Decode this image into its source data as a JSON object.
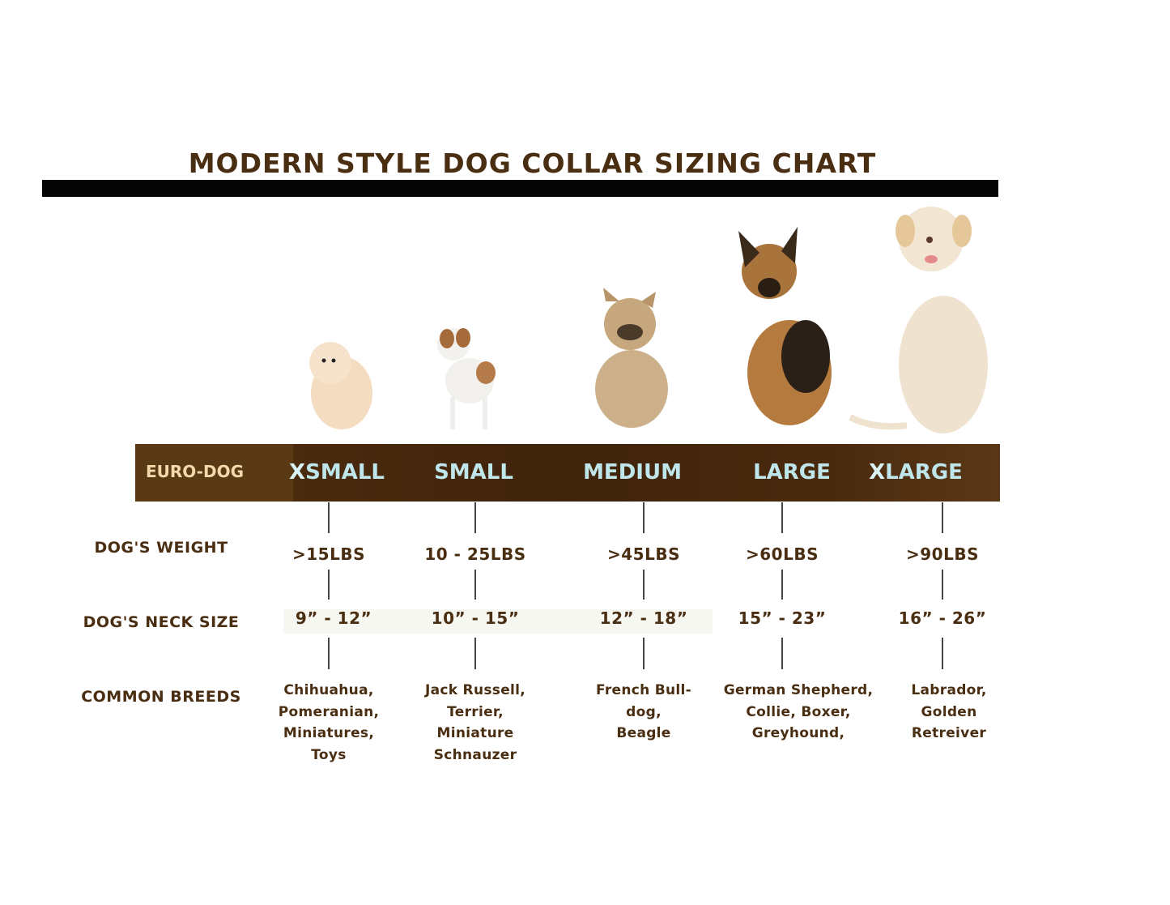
{
  "title": "MODERN STYLE DOG COLLAR SIZING CHART",
  "brand_label": "EURO-DOG",
  "row_labels": {
    "weight": "DOG'S WEIGHT",
    "neck": "DOG'S NECK SIZE",
    "breeds": "COMMON BREEDS"
  },
  "colors": {
    "text": "#4a2e12",
    "band": "#4a2a0e",
    "size_label": "#bfe6ea",
    "brand_label": "#f4d9aa"
  },
  "sizes": [
    {
      "x": "X",
      "label": "SMALL",
      "weight": ">15LBS",
      "neck": "9” - 12”",
      "breeds": [
        "Chihuahua,",
        "Pomeranian,",
        "Miniatures,",
        "Toys"
      ],
      "dog": "pomeranian"
    },
    {
      "x": "",
      "label": "SMALL",
      "weight": "10 - 25LBS",
      "neck": "10” - 15”",
      "breeds": [
        "Jack Russell,",
        "Terrier,",
        "Miniature",
        "Schnauzer"
      ],
      "dog": "jack-russell"
    },
    {
      "x": "",
      "label": "MEDIUM",
      "weight": ">45LBS",
      "neck": "12” - 18”",
      "breeds": [
        "French Bull-",
        "dog,",
        "Beagle"
      ],
      "dog": "french-bulldog"
    },
    {
      "x": "",
      "label": "LARGE",
      "weight": ">60LBS",
      "neck": "15” - 23”",
      "breeds": [
        "German Shepherd,",
        "Collie, Boxer,",
        "Greyhound,"
      ],
      "dog": "german-shepherd"
    },
    {
      "x": "X",
      "label": "LARGE",
      "weight": ">90LBS",
      "neck": "16” - 26”",
      "breeds": [
        "Labrador,",
        "Golden",
        "Retreiver"
      ],
      "dog": "labrador"
    }
  ]
}
